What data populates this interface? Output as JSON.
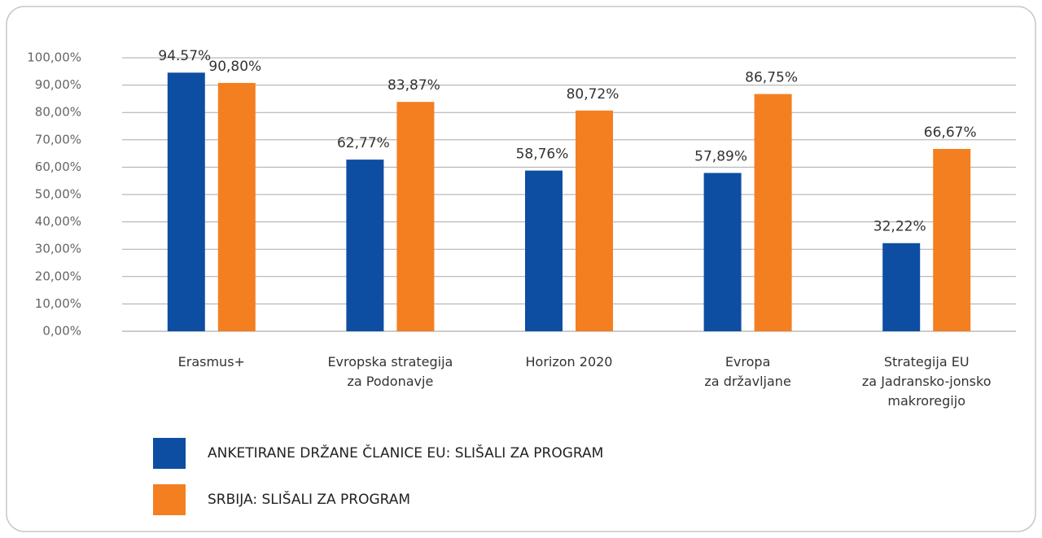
{
  "chart_data": {
    "type": "bar",
    "categories": [
      [
        "Erasmus+"
      ],
      [
        "Evropska strategija",
        "za Podonavje"
      ],
      [
        "Horizon 2020"
      ],
      [
        "Evropa",
        "za državljane"
      ],
      [
        "Strategija EU",
        "za Jadransko-jonsko",
        "makroregijo"
      ]
    ],
    "series": [
      {
        "name": "ANKETIRANE DRŽANE ČLANICE EU: SLIŠALI ZA PROGRAM",
        "color": "#0d4ea3",
        "values": [
          94.57,
          62.77,
          58.76,
          57.89,
          32.22
        ],
        "value_labels": [
          "94.57%",
          "62,77%",
          "58,76%",
          "57,89%",
          "32,22%"
        ]
      },
      {
        "name": "SRBIJA: SLIŠALI ZA PROGRAM",
        "color": "#f47f20",
        "values": [
          90.8,
          83.87,
          80.72,
          86.75,
          66.67
        ],
        "value_labels": [
          "90,80%",
          "83,87%",
          "80,72%",
          "86,75%",
          "66,67%"
        ]
      }
    ],
    "ylim": [
      0,
      100
    ],
    "yticks": [
      {
        "value": 0,
        "label": "0,00%"
      },
      {
        "value": 10,
        "label": "10,00%"
      },
      {
        "value": 20,
        "label": "20,00%"
      },
      {
        "value": 30,
        "label": "30,00%"
      },
      {
        "value": 40,
        "label": "40,00%"
      },
      {
        "value": 50,
        "label": "50,00%"
      },
      {
        "value": 60,
        "label": "60,00%"
      },
      {
        "value": 70,
        "label": "70,00%"
      },
      {
        "value": 80,
        "label": "80,00%"
      },
      {
        "value": 90,
        "label": "90,00%"
      },
      {
        "value": 100,
        "label": "100,00%"
      }
    ],
    "grid": true
  }
}
